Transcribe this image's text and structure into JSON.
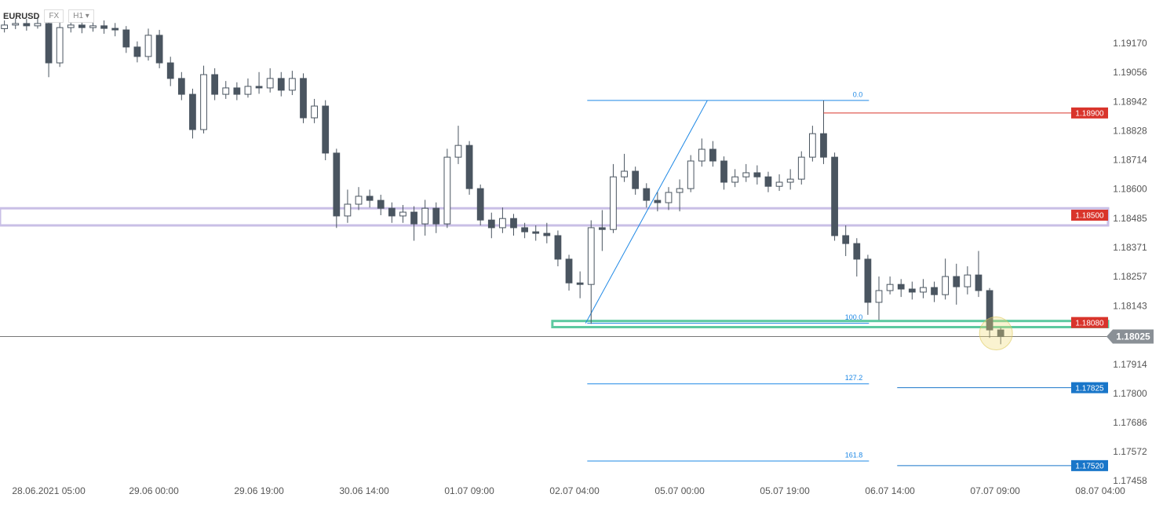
{
  "header": {
    "symbol": "EURUSD",
    "market": "FX",
    "timeframe": "H1"
  },
  "chart_data": {
    "type": "candlestick",
    "x": [
      0,
      2,
      4,
      6,
      8,
      10,
      12,
      14,
      16,
      18,
      20,
      22,
      24,
      26,
      28,
      30,
      32,
      34,
      36,
      38,
      40,
      42,
      44,
      46,
      48,
      50,
      52,
      54,
      56,
      58,
      60,
      62,
      64,
      66,
      68,
      70,
      72,
      74,
      76,
      78,
      80,
      82,
      84,
      86,
      88,
      90,
      92,
      94,
      96,
      98,
      100,
      102,
      104,
      106,
      108,
      110,
      112,
      114,
      116,
      118,
      120,
      122,
      124,
      126,
      128,
      130,
      132,
      134,
      136,
      138,
      140,
      142,
      144,
      146,
      148,
      150,
      152,
      154,
      156,
      158,
      160,
      162,
      164,
      166,
      168,
      170,
      172,
      174,
      176,
      178,
      180
    ],
    "open": [
      1.1923,
      1.19244,
      1.1925,
      1.19241,
      1.1925,
      1.19096,
      1.19234,
      1.19244,
      1.19234,
      1.19241,
      1.19231,
      1.19225,
      1.19158,
      1.19121,
      1.19204,
      1.19096,
      1.19035,
      1.18973,
      1.18835,
      1.1905,
      1.18973,
      1.18998,
      1.18973,
      1.19004,
      1.18998,
      1.19035,
      1.18989,
      1.19035,
      1.18881,
      1.18927,
      1.18743,
      1.18497,
      1.18543,
      1.18574,
      1.18558,
      1.18527,
      1.18497,
      1.18512,
      1.18466,
      1.18527,
      1.18466,
      1.18727,
      1.18773,
      1.18604,
      1.18481,
      1.18451,
      1.18487,
      1.18451,
      1.18435,
      1.18429,
      1.1842,
      1.18328,
      1.18235,
      1.18229,
      1.18451,
      1.18444,
      1.1865,
      1.18672,
      1.18604,
      1.18558,
      1.18549,
      1.18589,
      1.18604,
      1.18712,
      1.18758,
      1.18712,
      1.18629,
      1.1865,
      1.18666,
      1.1865,
      1.18613,
      1.18629,
      1.18641,
      1.18727,
      1.18819,
      1.18727,
      1.1842,
      1.18389,
      1.18328,
      1.18159,
      1.18205,
      1.18229,
      1.18211,
      1.18199,
      1.18217,
      1.18189,
      1.1826,
      1.1822,
      1.18266,
      1.18205,
      1.18051
    ],
    "high": [
      1.19262,
      1.1927,
      1.19268,
      1.19275,
      1.19262,
      1.19258,
      1.1927,
      1.19262,
      1.19265,
      1.19262,
      1.19252,
      1.1924,
      1.1918,
      1.1923,
      1.19225,
      1.1912,
      1.1906,
      1.18995,
      1.19085,
      1.19075,
      1.19025,
      1.1902,
      1.19035,
      1.1906,
      1.19075,
      1.1906,
      1.19065,
      1.19055,
      1.18955,
      1.1895,
      1.1876,
      1.186,
      1.1861,
      1.186,
      1.1858,
      1.1855,
      1.1854,
      1.18535,
      1.1856,
      1.1855,
      1.1876,
      1.1885,
      1.1879,
      1.1862,
      1.1851,
      1.1853,
      1.18505,
      1.1847,
      1.1846,
      1.1847,
      1.1844,
      1.18345,
      1.1828,
      1.1848,
      1.1852,
      1.187,
      1.1874,
      1.1869,
      1.18625,
      1.1859,
      1.1861,
      1.1864,
      1.18735,
      1.188,
      1.1879,
      1.1873,
      1.1868,
      1.187,
      1.18695,
      1.1867,
      1.1866,
      1.1868,
      1.1875,
      1.1885,
      1.18949,
      1.18745,
      1.1846,
      1.1841,
      1.18345,
      1.1826,
      1.1826,
      1.1825,
      1.1824,
      1.1825,
      1.1824,
      1.1833,
      1.1831,
      1.183,
      1.1836,
      1.18215,
      1.1806
    ],
    "low": [
      1.19215,
      1.19228,
      1.19222,
      1.1923,
      1.1904,
      1.1908,
      1.19215,
      1.19212,
      1.19218,
      1.1921,
      1.192,
      1.19135,
      1.19098,
      1.19105,
      1.19075,
      1.19005,
      1.1895,
      1.188,
      1.1882,
      1.1895,
      1.18955,
      1.1895,
      1.1896,
      1.18975,
      1.1898,
      1.18965,
      1.1897,
      1.1886,
      1.1886,
      1.18715,
      1.1845,
      1.1847,
      1.1852,
      1.1853,
      1.185,
      1.1847,
      1.1847,
      1.184,
      1.1842,
      1.1843,
      1.1845,
      1.187,
      1.1858,
      1.1846,
      1.1841,
      1.1843,
      1.1842,
      1.1841,
      1.184,
      1.1839,
      1.183,
      1.18205,
      1.18175,
      1.18075,
      1.1836,
      1.1843,
      1.1863,
      1.1858,
      1.1853,
      1.18515,
      1.1852,
      1.18515,
      1.1859,
      1.1869,
      1.1869,
      1.186,
      1.1861,
      1.1863,
      1.1862,
      1.1859,
      1.18595,
      1.186,
      1.1862,
      1.1871,
      1.187,
      1.184,
      1.1834,
      1.1826,
      1.1811,
      1.1809,
      1.1819,
      1.1818,
      1.1817,
      1.18175,
      1.1816,
      1.1817,
      1.1815,
      1.1819,
      1.1818,
      1.1802,
      1.17995
    ],
    "close": [
      1.19244,
      1.1925,
      1.19241,
      1.1925,
      1.19096,
      1.19234,
      1.19244,
      1.19234,
      1.19241,
      1.19231,
      1.19225,
      1.19158,
      1.19121,
      1.19204,
      1.19096,
      1.19035,
      1.18973,
      1.18835,
      1.1905,
      1.18973,
      1.18998,
      1.18973,
      1.19004,
      1.18998,
      1.19035,
      1.18989,
      1.19035,
      1.18881,
      1.18927,
      1.18743,
      1.18497,
      1.18543,
      1.18574,
      1.18558,
      1.18527,
      1.18497,
      1.18512,
      1.18466,
      1.18527,
      1.18466,
      1.18727,
      1.18773,
      1.18604,
      1.18481,
      1.18451,
      1.18487,
      1.18451,
      1.18435,
      1.18429,
      1.1842,
      1.18328,
      1.18235,
      1.18229,
      1.18451,
      1.18444,
      1.1865,
      1.18672,
      1.18604,
      1.18558,
      1.18549,
      1.18589,
      1.18604,
      1.18712,
      1.18758,
      1.18712,
      1.18629,
      1.1865,
      1.18666,
      1.1865,
      1.18613,
      1.18629,
      1.18641,
      1.18727,
      1.18819,
      1.18727,
      1.1842,
      1.18389,
      1.18328,
      1.18159,
      1.18205,
      1.18229,
      1.18211,
      1.18199,
      1.18217,
      1.18189,
      1.1826,
      1.1822,
      1.18266,
      1.18205,
      1.18051,
      1.18025
    ],
    "up_color": "#ffffff",
    "down_color": "#4a5560",
    "xlim": [
      -0.8,
      199.4
    ],
    "xticks": [
      {
        "value": 8,
        "label": "28.06.2021  05:00"
      },
      {
        "value": 27,
        "label": "29.06  00:00"
      },
      {
        "value": 46,
        "label": "29.06  19:00"
      },
      {
        "value": 65,
        "label": "30.06  14:00"
      },
      {
        "value": 84,
        "label": "01.07  09:00"
      },
      {
        "value": 103,
        "label": "02.07  04:00"
      },
      {
        "value": 122,
        "label": "05.07  00:00"
      },
      {
        "value": 141,
        "label": "05.07  19:00"
      },
      {
        "value": 160,
        "label": "06.07  14:00"
      },
      {
        "value": 179,
        "label": "07.07  09:00"
      },
      {
        "value": 198,
        "label": "08.07  04:00"
      }
    ],
    "ylim": [
      1.17452,
      1.19342
    ],
    "yticks": [
      {
        "value": 1.1917,
        "label": "1.19170"
      },
      1.19056,
      1.18942,
      1.18828,
      1.18714,
      {
        "value": 1.186,
        "label": "1.18600"
      },
      1.18485,
      1.18371,
      1.18257,
      1.18143,
      1.17914,
      {
        "value": 1.178,
        "label": "1.17800"
      },
      1.17686,
      1.17572,
      1.17458
    ],
    "zones": [
      {
        "low": 1.1846,
        "high": 1.18527,
        "start": -0.8,
        "color": "#c9bfe6"
      },
      {
        "low": 1.18062,
        "high": 1.18086,
        "start": 99,
        "color": "#5cc9a0"
      }
    ],
    "fib": {
      "from": 1.18077,
      "to": 1.18949,
      "x": [
        105.3,
        156.2
      ],
      "trend_x": [
        105,
        127
      ],
      "color": "#1e88e5",
      "levels": [
        {
          "value": 0,
          "label": "0.0"
        },
        {
          "value": 100,
          "label": "100.0"
        },
        127.2,
        161.8
      ]
    },
    "price_tags": [
      {
        "value": 1.189,
        "label": "1.18900",
        "color": "#d9342b",
        "start": 148
      },
      {
        "value": 1.185,
        "label": "1.18500",
        "color": "#d9342b"
      },
      {
        "value": 1.1808,
        "label": "1.18080",
        "color": "#d9342b"
      },
      {
        "value": 1.17825,
        "label": "1.17825",
        "color": "#1976c9",
        "start": 161.3
      },
      {
        "value": 1.1752,
        "label": "1.17520",
        "color": "#1976c9",
        "start": 161.3
      }
    ],
    "last_price": {
      "value": 1.18025,
      "label": "1.18025",
      "color": "#8a9096"
    }
  }
}
